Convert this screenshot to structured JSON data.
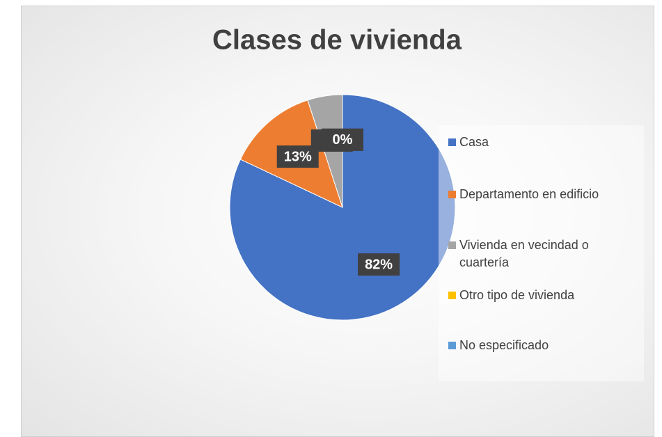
{
  "chart_data": {
    "type": "pie",
    "title": "Clases de vivienda",
    "categories": [
      "Casa",
      "Departamento en edificio",
      "Vivienda en vecindad o cuartería",
      "Otro tipo de vivienda",
      "No especificado"
    ],
    "values": [
      82,
      13,
      5,
      0,
      0
    ],
    "value_labels": [
      "82%",
      "13%",
      "5%",
      "0%",
      "0%"
    ],
    "colors": [
      "#4472c4",
      "#ed7d31",
      "#a5a5a5",
      "#ffc000",
      "#5b9bd5"
    ],
    "legend": "right"
  }
}
